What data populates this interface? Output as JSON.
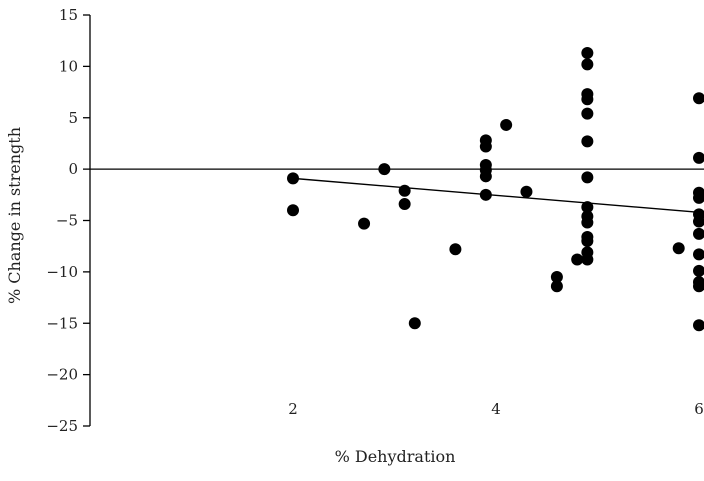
{
  "chart_data": {
    "type": "scatter",
    "title": "",
    "xlabel": "% Dehydration",
    "ylabel": "% Change in strength",
    "xlim": [
      0,
      6
    ],
    "ylim": [
      -25,
      15
    ],
    "x_ticks": [
      2,
      4,
      6
    ],
    "y_ticks": [
      15,
      10,
      5,
      0,
      -5,
      -10,
      -15,
      -20,
      -25
    ],
    "x_tick_labels": [
      "2",
      "4",
      "6"
    ],
    "y_tick_labels": [
      "15",
      "10",
      "5",
      "0",
      "−5",
      "−10",
      "−15",
      "−20",
      "−25"
    ],
    "grid": false,
    "zero_line": true,
    "series": [
      {
        "points": [
          [
            2.0,
            -0.9
          ],
          [
            2.0,
            -4.0
          ],
          [
            2.7,
            -5.3
          ],
          [
            2.9,
            0.0
          ],
          [
            3.1,
            -2.1
          ],
          [
            3.1,
            -3.4
          ],
          [
            3.2,
            -15.0
          ],
          [
            3.6,
            -7.8
          ],
          [
            3.9,
            2.8
          ],
          [
            3.9,
            2.2
          ],
          [
            3.9,
            0.4
          ],
          [
            3.9,
            -0.1
          ],
          [
            3.9,
            -0.7
          ],
          [
            3.9,
            -2.5
          ],
          [
            4.1,
            4.3
          ],
          [
            4.3,
            -2.2
          ],
          [
            4.6,
            -10.5
          ],
          [
            4.6,
            -11.4
          ],
          [
            4.8,
            -8.8
          ],
          [
            4.9,
            11.3
          ],
          [
            4.9,
            10.2
          ],
          [
            4.9,
            7.3
          ],
          [
            4.9,
            6.8
          ],
          [
            4.9,
            5.4
          ],
          [
            4.9,
            2.7
          ],
          [
            4.9,
            -0.8
          ],
          [
            4.9,
            -3.7
          ],
          [
            4.9,
            -4.6
          ],
          [
            4.9,
            -5.2
          ],
          [
            4.9,
            -6.6
          ],
          [
            4.9,
            -7.0
          ],
          [
            4.9,
            -8.1
          ],
          [
            4.9,
            -8.8
          ],
          [
            5.8,
            -7.7
          ],
          [
            6.0,
            6.9
          ],
          [
            6.0,
            1.1
          ],
          [
            6.0,
            -2.3
          ],
          [
            6.0,
            -2.8
          ],
          [
            6.0,
            -4.4
          ],
          [
            6.0,
            -5.1
          ],
          [
            6.0,
            -6.3
          ],
          [
            6.0,
            -8.3
          ],
          [
            6.0,
            -9.9
          ],
          [
            6.0,
            -11.0
          ],
          [
            6.0,
            -11.4
          ],
          [
            6.0,
            -15.2
          ]
        ]
      }
    ],
    "trend_line": {
      "x": [
        2.0,
        6.0
      ],
      "y": [
        -0.9,
        -4.2
      ]
    }
  }
}
